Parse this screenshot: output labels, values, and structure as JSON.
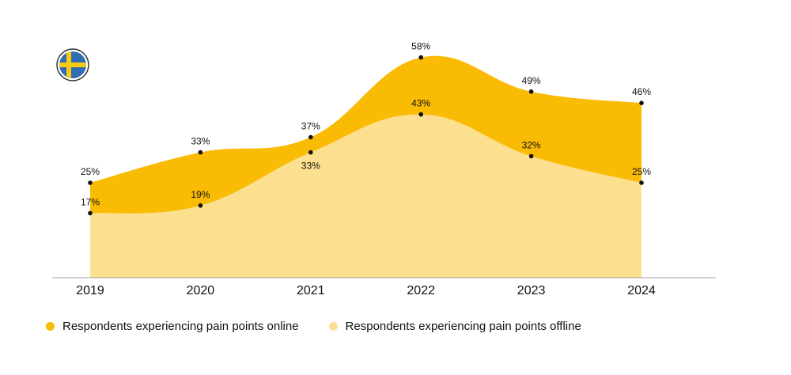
{
  "chart_data": {
    "type": "area",
    "categories": [
      "2019",
      "2020",
      "2021",
      "2022",
      "2023",
      "2024"
    ],
    "series": [
      {
        "name": "Respondents experiencing pain points online",
        "values": [
          25,
          33,
          37,
          58,
          49,
          46
        ],
        "labels": [
          "25%",
          "33%",
          "37%",
          "58%",
          "49%",
          "46%"
        ],
        "color": "#FABB05"
      },
      {
        "name": "Respondents experiencing pain points offline",
        "values": [
          17,
          19,
          33,
          43,
          32,
          25
        ],
        "labels": [
          "17%",
          "19%",
          "33%",
          "43%",
          "32%",
          "25%"
        ],
        "color": "#FCE08F"
      }
    ],
    "title": "",
    "xlabel": "",
    "ylabel": "",
    "ylim": [
      0,
      60
    ],
    "grid": false,
    "legend_position": "bottom-left",
    "curve": "smooth",
    "flag_icon": "sweden-flag-icon",
    "colors": {
      "marker": "#111111",
      "baseline": "#9E9E9E",
      "flag_blue": "#2F6DB4",
      "flag_yellow": "#FBCB12"
    }
  }
}
